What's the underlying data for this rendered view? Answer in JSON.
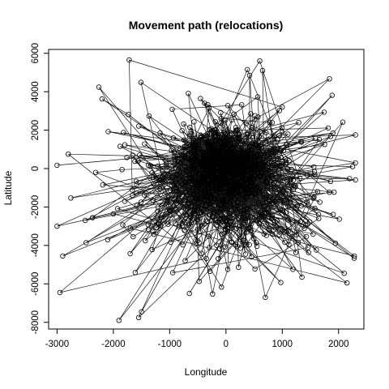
{
  "chart_data": {
    "type": "scatter",
    "title": "Movement path (relocations)",
    "xlabel": "Longitude",
    "ylabel": "Latitude",
    "xlim": [
      -3150,
      2450
    ],
    "ylim": [
      -8350,
      6200
    ],
    "xticks": [
      -3000,
      -2000,
      -1000,
      0,
      1000,
      2000
    ],
    "yticks": [
      -8000,
      -6000,
      -4000,
      -2000,
      0,
      2000,
      4000,
      6000
    ],
    "grid": false,
    "legend": "none",
    "connected": true,
    "marker": "open-circle",
    "n_points": 1500,
    "cluster": {
      "center": [
        0,
        0
      ],
      "sd_x": 420,
      "sd_y": 1000
    },
    "outliers": [
      [
        600,
        5600
      ],
      [
        650,
        5100
      ],
      [
        420,
        4850
      ],
      [
        380,
        5150
      ],
      [
        -380,
        3400
      ],
      [
        -300,
        3150
      ],
      [
        1000,
        3200
      ],
      [
        -2800,
        750
      ],
      [
        -3000,
        -3000
      ],
      [
        -2900,
        -4550
      ],
      [
        -2950,
        -6450
      ],
      [
        -1900,
        -7900
      ],
      [
        -1550,
        -7750
      ],
      [
        -1500,
        -7450
      ],
      [
        2280,
        -4550
      ],
      [
        2150,
        -5950
      ],
      [
        2100,
        -5450
      ],
      [
        2250,
        100
      ],
      [
        1900,
        1850
      ],
      [
        -1700,
        -3100
      ],
      [
        -2100,
        -3700
      ],
      [
        -2500,
        -2700
      ],
      [
        700,
        -6700
      ],
      [
        -650,
        -6500
      ],
      [
        1350,
        -5650
      ]
    ],
    "colors": {
      "stroke": "#000000",
      "background": "#ffffff"
    }
  }
}
